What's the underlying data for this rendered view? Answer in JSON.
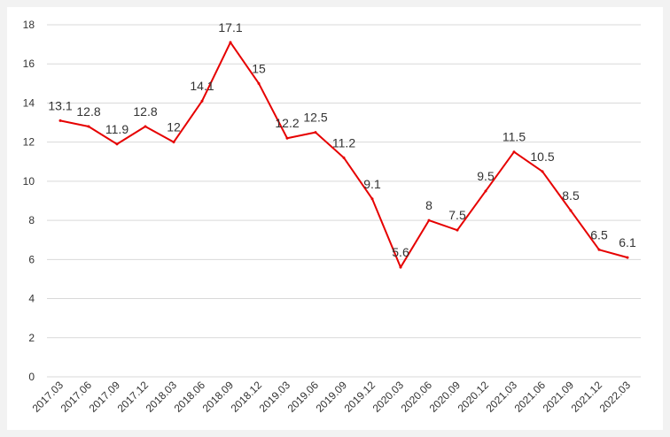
{
  "chart_data": {
    "type": "line",
    "title": "",
    "xlabel": "",
    "ylabel": "",
    "ylim": [
      0,
      18
    ],
    "yticks": [
      "0",
      "2",
      "4",
      "6",
      "8",
      "10",
      "12",
      "14",
      "16",
      "18"
    ],
    "grid": true,
    "line_color": "#e60000",
    "categories": [
      "2017.03",
      "2017.06",
      "2017.09",
      "2017.12",
      "2018.03",
      "2018.06",
      "2018.09",
      "2018.12",
      "2019.03",
      "2019.06",
      "2019.09",
      "2019.12",
      "2020.03",
      "2020.06",
      "2020.09",
      "2020.12",
      "2021.03",
      "2021.06",
      "2021.09",
      "2021.12",
      "2022.03"
    ],
    "values": [
      13.1,
      12.8,
      11.9,
      12.8,
      12,
      14.1,
      17.1,
      15,
      12.2,
      12.5,
      11.2,
      9.1,
      5.6,
      8,
      7.5,
      9.5,
      11.5,
      10.5,
      8.5,
      6.5,
      6.1
    ],
    "value_labels": [
      "13.1",
      "12.8",
      "11.9",
      "12.8",
      "12",
      "14.1",
      "17.1",
      "15",
      "12.2",
      "12.5",
      "11.2",
      "9.1",
      "5.6",
      "8",
      "7.5",
      "9.5",
      "11.5",
      "10.5",
      "8.5",
      "6.5",
      "6.1"
    ]
  }
}
